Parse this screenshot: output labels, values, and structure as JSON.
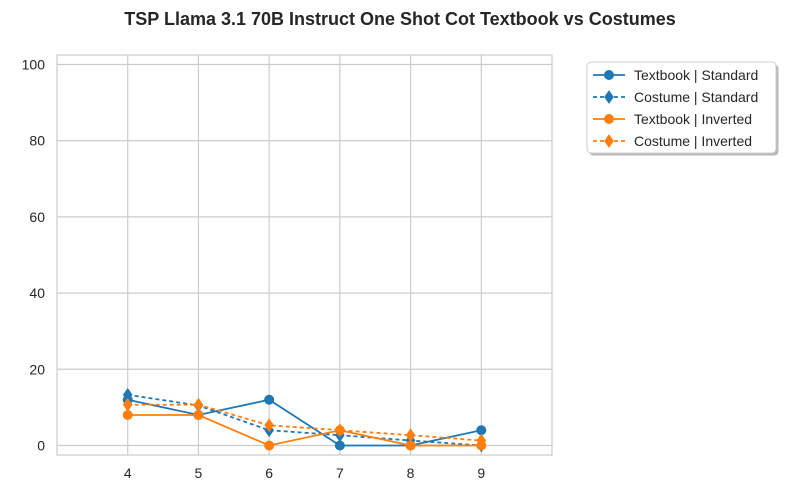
{
  "chart_data": {
    "type": "line",
    "title": "TSP Llama 3.1 70B Instruct One Shot Cot Textbook vs Costumes",
    "xlabel": "",
    "ylabel": "",
    "x": [
      4,
      5,
      6,
      7,
      8,
      9
    ],
    "xlim": [
      3,
      10
    ],
    "ylim": [
      -2.5,
      102.5
    ],
    "xticks": [
      4,
      5,
      6,
      7,
      8,
      9
    ],
    "yticks": [
      0,
      20,
      40,
      60,
      80,
      100
    ],
    "grid": true,
    "legend_position": "outside top-right",
    "series": [
      {
        "name": "Textbook | Standard",
        "values": [
          12,
          8,
          12,
          0,
          0,
          4
        ],
        "color": "#1f77b4",
        "linestyle": "solid",
        "marker": "circle"
      },
      {
        "name": "Costume | Standard",
        "values": [
          13.3,
          10.5,
          4,
          2.7,
          1.3,
          0
        ],
        "color": "#1f77b4",
        "linestyle": "dashed",
        "marker": "diamond"
      },
      {
        "name": "Textbook | Inverted",
        "values": [
          8,
          8,
          0,
          4,
          0,
          0
        ],
        "color": "#ff7f0e",
        "linestyle": "solid",
        "marker": "circle"
      },
      {
        "name": "Costume | Inverted",
        "values": [
          10.7,
          10.7,
          5.3,
          4,
          2.7,
          1.3
        ],
        "color": "#ff7f0e",
        "linestyle": "dashed",
        "marker": "diamond"
      }
    ]
  }
}
